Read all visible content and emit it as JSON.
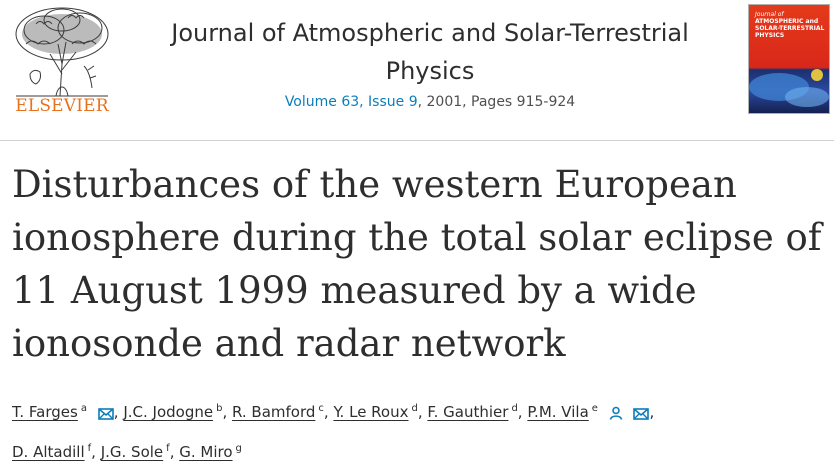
{
  "header": {
    "publisher": "ELSEVIER",
    "journal_title": "Journal of Atmospheric and Solar-Terrestrial Physics",
    "volume_issue": "Volume 63, Issue 9",
    "year_pages": ", 2001, Pages 915-924",
    "cover": {
      "line1": "Journal of",
      "line2": "ATMOSPHERIC and",
      "line3": "SOLAR-TERRESTRIAL",
      "line4": "PHYSICS"
    }
  },
  "article": {
    "title": "Disturbances of the western European ionosphere during the total solar eclipse of 11 August 1999 measured by a wide ionosonde and radar network"
  },
  "authors": [
    {
      "name": "T. Farges",
      "aff": "a",
      "icons": [
        "envelope-icon"
      ]
    },
    {
      "name": "J.C. Jodogne",
      "aff": "b",
      "icons": []
    },
    {
      "name": "R. Bamford",
      "aff": "c",
      "icons": []
    },
    {
      "name": "Y. Le Roux",
      "aff": "d",
      "icons": []
    },
    {
      "name": "F. Gauthier",
      "aff": "d",
      "icons": []
    },
    {
      "name": "P.M. Vila",
      "aff": "e",
      "icons": [
        "person-icon",
        "envelope-icon"
      ]
    },
    {
      "name": "D. Altadill",
      "aff": "f",
      "icons": []
    },
    {
      "name": "J.G. Sole",
      "aff": "f",
      "icons": []
    },
    {
      "name": "G. Miro",
      "aff": "g",
      "icons": []
    }
  ],
  "colors": {
    "publisher_orange": "#e9711c",
    "link_blue": "#0c7dbb",
    "text": "#2e2e2e"
  }
}
